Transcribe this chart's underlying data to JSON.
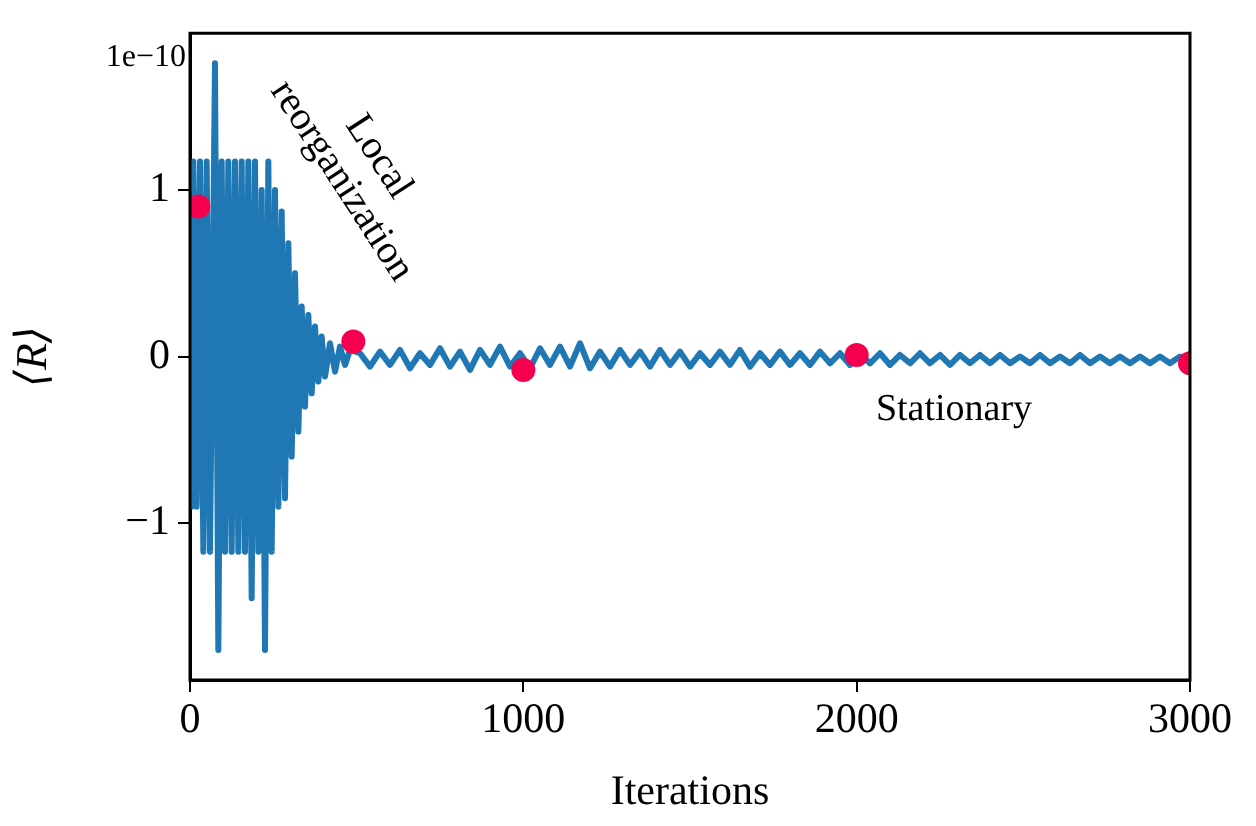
{
  "chart_data": {
    "type": "line",
    "xlabel": "Iterations",
    "ylabel": "⟨R⟩",
    "xlim": [
      0,
      3000
    ],
    "xticks": [
      0,
      1000,
      2000,
      3000
    ],
    "ylim": [
      -1.94,
      1.94
    ],
    "yticks": [
      {
        "value": -1,
        "label": "−1"
      },
      0,
      1
    ],
    "grid": false,
    "legend": false,
    "annotations": [
      "1e−10",
      "Local\nreorganization",
      "Stationary"
    ],
    "series": [
      {
        "color": "#1f77b4",
        "x": [
          0,
          5,
          10,
          20,
          30,
          40,
          50,
          60,
          75,
          85,
          95,
          105,
          115,
          125,
          135,
          145,
          155,
          165,
          175,
          185,
          195,
          205,
          215,
          225,
          235,
          245,
          255,
          265,
          275,
          285,
          295,
          305,
          315,
          325,
          335,
          345,
          355,
          365,
          375,
          385,
          395,
          405,
          420,
          435,
          450,
          465,
          480,
          510,
          540,
          570,
          600,
          630,
          660,
          690,
          720,
          750,
          780,
          810,
          840,
          870,
          900,
          930,
          960,
          990,
          1020,
          1050,
          1080,
          1110,
          1140,
          1170,
          1200,
          1230,
          1260,
          1290,
          1320,
          1350,
          1380,
          1410,
          1440,
          1470,
          1500,
          1530,
          1560,
          1590,
          1620,
          1650,
          1680,
          1710,
          1740,
          1770,
          1800,
          1830,
          1860,
          1890,
          1920,
          1950,
          1980,
          2010,
          2040,
          2070,
          2100,
          2130,
          2160,
          2190,
          2220,
          2250,
          2280,
          2310,
          2340,
          2370,
          2400,
          2430,
          2460,
          2490,
          2520,
          2550,
          2580,
          2610,
          2640,
          2670,
          2700,
          2730,
          2760,
          2790,
          2820,
          2850,
          2880,
          2910,
          2940,
          2970,
          3000
        ],
        "values": [
          0.3,
          -0.9,
          1.17,
          -0.9,
          1.17,
          -1.17,
          1.17,
          -1.17,
          1.76,
          -1.76,
          1.17,
          -1.17,
          1.17,
          -1.17,
          1.17,
          -1.17,
          1.17,
          -1.17,
          1.17,
          -1.45,
          1.17,
          -1.17,
          1.0,
          -1.76,
          1.17,
          -1.17,
          1.0,
          -0.9,
          0.87,
          -0.85,
          0.68,
          -0.6,
          0.5,
          -0.45,
          0.3,
          -0.3,
          0.25,
          -0.22,
          0.18,
          -0.15,
          0.12,
          -0.12,
          0.08,
          -0.09,
          0.06,
          -0.05,
          0.04,
          0.02,
          -0.06,
          0.03,
          -0.05,
          0.04,
          -0.07,
          0.02,
          -0.05,
          0.05,
          -0.06,
          0.03,
          -0.08,
          0.04,
          -0.05,
          0.06,
          -0.06,
          0.02,
          -0.07,
          0.05,
          -0.05,
          0.06,
          -0.06,
          0.08,
          -0.07,
          0.03,
          -0.06,
          0.04,
          -0.05,
          0.03,
          -0.06,
          0.04,
          -0.05,
          0.03,
          -0.06,
          0.02,
          -0.05,
          0.03,
          -0.05,
          0.04,
          -0.06,
          0.02,
          -0.05,
          0.03,
          -0.05,
          0.02,
          -0.05,
          0.03,
          -0.04,
          0.02,
          -0.05,
          0.02,
          -0.04,
          0.02,
          -0.05,
          0.01,
          -0.04,
          0.02,
          -0.04,
          0.01,
          -0.05,
          0.01,
          -0.04,
          0.01,
          -0.04,
          0.01,
          -0.04,
          0.0,
          -0.04,
          0.01,
          -0.04,
          0.0,
          -0.04,
          0.01,
          -0.04,
          0.0,
          -0.04,
          0.0,
          -0.04,
          0.0,
          -0.04,
          0.0,
          -0.04,
          0.0,
          -0.03
        ]
      },
      {
        "type": "scatter",
        "color": "#f5004f",
        "x": [
          25,
          490,
          1000,
          2000,
          3000
        ],
        "values": [
          0.9,
          0.09,
          -0.08,
          0.01,
          -0.04
        ]
      }
    ]
  }
}
